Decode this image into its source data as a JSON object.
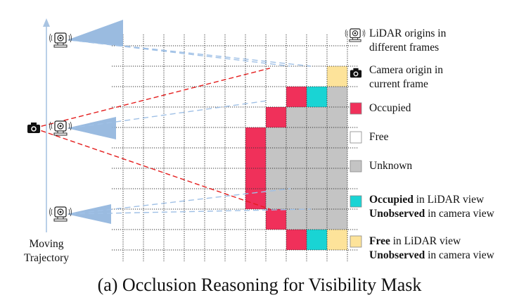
{
  "caption": "(a) Occlusion Reasoning for Visibility Mask",
  "trajectory_label": {
    "line1": "Moving",
    "line2": "Trajectory"
  },
  "legend": {
    "lidar": {
      "line1": "LiDAR origins in",
      "line2": "different frames",
      "icon": "lidar-sensor-icon"
    },
    "camera": {
      "line1": "Camera origin in",
      "line2": "current frame",
      "icon": "camera-icon"
    },
    "occupied": {
      "label": "Occupied",
      "color": "#f0305a"
    },
    "free": {
      "label": "Free",
      "color": "#ffffff"
    },
    "unknown": {
      "label": "Unknown",
      "color": "#c4c4c4"
    },
    "occ_unobs": {
      "bold1": "Occupied",
      "rest1": " in LiDAR view",
      "bold2": "Unobserved",
      "rest2": " in camera view",
      "color": "#19d4d4"
    },
    "free_unobs": {
      "bold1": "Free",
      "rest1": " in LiDAR view",
      "bold2": "Unobserved",
      "rest2": " in camera view",
      "color": "#fde39a"
    }
  },
  "grid_cells": {
    "occupied": [
      [
        8,
        2
      ],
      [
        7,
        3
      ],
      [
        6,
        4
      ],
      [
        6,
        5
      ],
      [
        6,
        6
      ],
      [
        6,
        7
      ],
      [
        7,
        8
      ],
      [
        8,
        9
      ]
    ],
    "occ_unobs": [
      [
        9,
        2
      ],
      [
        9,
        9
      ]
    ],
    "free_unobs": [
      [
        10,
        1
      ],
      [
        10,
        9
      ]
    ],
    "unknown_rows": {
      "2": [
        10,
        10
      ],
      "3": [
        8,
        10
      ],
      "4": [
        7,
        10
      ],
      "5": [
        7,
        10
      ],
      "6": [
        7,
        10
      ],
      "7": [
        7,
        10
      ],
      "8": [
        8,
        10
      ]
    }
  }
}
